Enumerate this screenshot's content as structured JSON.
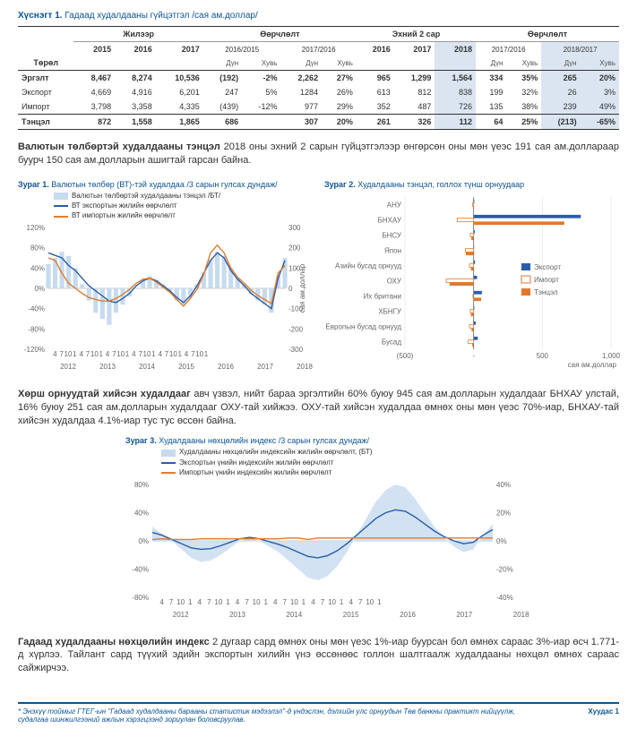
{
  "table": {
    "title_bold": "Хүснэгт 1.",
    "title_rest": " Гадаад худалдааны гүйцэтгэл /сая ам.доллар/",
    "group_headers": [
      "Жилээр",
      "Өөрчлөлт",
      "Эхний 2 сар",
      "Өөрчлөлт"
    ],
    "year_headers": [
      "2015",
      "2016",
      "2017"
    ],
    "change_ranges1": [
      "2016/2015",
      "2017/2016"
    ],
    "month_headers": [
      "2016",
      "2017",
      "2018"
    ],
    "change_ranges2": [
      "2017/2016",
      "2018/2017"
    ],
    "sub": [
      "Дүн",
      "Хувь",
      "Дүн",
      "Хувь",
      "Дүн",
      "Хувь",
      "Дүн",
      "Хувь"
    ],
    "row_label": "Төрөл",
    "rows": [
      {
        "name": "Эргэлт",
        "v": [
          "8,467",
          "8,274",
          "10,536",
          "(192)",
          "-2%",
          "2,262",
          "27%",
          "965",
          "1,299",
          "1,564",
          "334",
          "35%",
          "265",
          "20%"
        ]
      },
      {
        "name": "Экспорт",
        "v": [
          "4,669",
          "4,916",
          "6,201",
          "247",
          "5%",
          "1284",
          "26%",
          "613",
          "812",
          "838",
          "199",
          "32%",
          "26",
          "3%"
        ]
      },
      {
        "name": "Импорт",
        "v": [
          "3,798",
          "3,358",
          "4,335",
          "(439)",
          "-12%",
          "977",
          "29%",
          "352",
          "487",
          "726",
          "135",
          "38%",
          "239",
          "49%"
        ]
      },
      {
        "name": "Тэнцэл",
        "v": [
          "872",
          "1,558",
          "1,865",
          "686",
          "",
          "307",
          "20%",
          "261",
          "326",
          "112",
          "64",
          "25%",
          "(213)",
          "-65%"
        ]
      }
    ]
  },
  "para1_a": "Валютын төлбөртэй худалдааны тэнцэл",
  "para1_b": " 2018 оны эхний 2 сарын гүйцэтгэлээр өнгөрсөн оны мөн үеэс  191 сая ам.доллараар буурч 150 сая ам.долларын ашигтай гарсан байна.",
  "chart1": {
    "title_bold": "Зураг 1.",
    "title_rest": " Валютын төлбөр (ВТ)-тэй худалдаа ",
    "subtitle": "/3 сарын гулсах дундаж/",
    "legend": [
      "Валютын төлбөртэй худалдааны тэнцэл /БТ/",
      "ВТ экспортын жилийн өөрчлөлт",
      "ВТ импортын жилийн өөрчлөлт"
    ],
    "colors": {
      "bar": "#c7dbef",
      "line1": "#2a5caa",
      "line2": "#e07b2e"
    },
    "yLeft": [
      120,
      80,
      40,
      0,
      -40,
      -80,
      -120
    ],
    "yRight": [
      300,
      200,
      100,
      0,
      -100,
      -200,
      -300
    ],
    "yRightLabel": "сая ам.доллар",
    "xYears": [
      "2012",
      "2013",
      "2014",
      "2015",
      "2016",
      "2017",
      "2018"
    ],
    "xMonths": [
      "4",
      "7",
      "10",
      "1"
    ],
    "bars": [
      120,
      150,
      180,
      160,
      100,
      20,
      -60,
      -120,
      -150,
      -180,
      -120,
      -80,
      -40,
      0,
      40,
      60,
      40,
      20,
      -10,
      -60,
      -80,
      -40,
      20,
      80,
      140,
      180,
      160,
      100,
      50,
      20,
      -30,
      -60,
      -80,
      -120,
      60,
      150
    ],
    "series1": [
      70,
      65,
      60,
      45,
      35,
      20,
      5,
      -5,
      -15,
      -25,
      -28,
      -20,
      -10,
      5,
      15,
      20,
      15,
      5,
      -5,
      -18,
      -28,
      -15,
      5,
      30,
      55,
      70,
      60,
      35,
      18,
      5,
      -10,
      -20,
      -30,
      -40,
      20,
      55
    ],
    "series2": [
      60,
      55,
      30,
      10,
      0,
      -10,
      -18,
      -22,
      -25,
      -25,
      -20,
      -12,
      -2,
      10,
      18,
      20,
      12,
      2,
      -8,
      -22,
      -35,
      -20,
      -2,
      28,
      70,
      85,
      70,
      40,
      22,
      10,
      -4,
      -14,
      -22,
      -30,
      30,
      45
    ]
  },
  "chart2": {
    "title_bold": "Зураг 2.",
    "title_rest": " Худалдааны тэнцэл, голлох түнш орнуудаар",
    "legend": [
      "Экспорт",
      "Импорт",
      "Тэнцэл"
    ],
    "colors": {
      "export": "#2a5caa",
      "import": "#e07b2e",
      "balance": "#e07b2e"
    },
    "categories": [
      "АНУ",
      "БНХАУ",
      "БНСУ",
      "Япон",
      "Азийн бусад орнууд",
      "ОХУ",
      "Их британи",
      "ХБНГУ",
      "Европын бусад орнууд",
      "Бусад"
    ],
    "xTicks": [
      "(500)",
      "-",
      "500",
      "1,000"
    ],
    "xLabel": "сая ам.доллар",
    "data": [
      {
        "exp": 5,
        "imp": -8,
        "bal": -3
      },
      {
        "exp": 780,
        "imp": -120,
        "bal": 660
      },
      {
        "exp": 8,
        "imp": -25,
        "bal": -17
      },
      {
        "exp": 3,
        "imp": -60,
        "bal": -57
      },
      {
        "exp": 10,
        "imp": -30,
        "bal": -20
      },
      {
        "exp": 25,
        "imp": -200,
        "bal": -175
      },
      {
        "exp": 60,
        "imp": -5,
        "bal": 55
      },
      {
        "exp": 5,
        "imp": -25,
        "bal": -20
      },
      {
        "exp": 15,
        "imp": -30,
        "bal": -15
      },
      {
        "exp": 30,
        "imp": -40,
        "bal": -10
      }
    ]
  },
  "para2": "Хөрш орнуудтай хийсэн худалдааг",
  "para2_rest": " авч үзвэл, нийт бараа эргэлтийн 60% буюу 945 сая ам.долларын худалдааг БНХАУ улстай, 16% буюу 251 сая ам.долларын худалдааг ОХУ-тай хийжээ. ОХУ-тай хийсэн худалдаа өмнөх оны мөн үеэс 70%-иар, БНХАУ-тай хийсэн худалдаа 4.1%-иар тус тус өссөн байна.",
  "chart3": {
    "title_bold": "Зураг 3.",
    "title_rest": " Худалдааны нөхцөлийн индекс ",
    "subtitle": "/3 сарын гулсах дундаж/",
    "legend": [
      "Худалдааны нөхцөлийн индексийн жилийн өөрчлөлт, (БТ)",
      "Экспортын үнийн индексийн жилийн өөрчлөлт",
      "Импортын үнийн индексийн жилийн өөрчлөлт"
    ],
    "colors": {
      "area": "#c7dbef",
      "line1": "#2a5caa",
      "line2": "#e07b2e"
    },
    "yLeft": [
      80,
      40,
      0,
      -40,
      -80
    ],
    "yRight": [
      40,
      20,
      0,
      -20,
      -40
    ],
    "xYears": [
      "2012",
      "2013",
      "2014",
      "2015",
      "2016",
      "2017",
      "2018"
    ],
    "xMonths": [
      "4",
      "7",
      "10",
      "1"
    ],
    "area": [
      10,
      5,
      0,
      -6,
      -12,
      -15,
      -14,
      -10,
      -5,
      0,
      2,
      0,
      -4,
      -8,
      -14,
      -20,
      -26,
      -28,
      -25,
      -18,
      -8,
      4,
      16,
      28,
      36,
      40,
      38,
      30,
      20,
      10,
      2,
      -4,
      -8,
      -6,
      4,
      12
    ],
    "series1": [
      12,
      8,
      2,
      -4,
      -10,
      -12,
      -11,
      -7,
      -2,
      3,
      5,
      3,
      -1,
      -5,
      -10,
      -16,
      -22,
      -24,
      -21,
      -14,
      -4,
      8,
      20,
      32,
      40,
      44,
      42,
      34,
      24,
      14,
      6,
      0,
      -4,
      -2,
      8,
      16
    ],
    "series2": [
      2,
      3,
      2,
      2,
      2,
      3,
      3,
      3,
      3,
      3,
      3,
      3,
      3,
      3,
      4,
      4,
      2,
      4,
      4,
      4,
      4,
      4,
      4,
      4,
      4,
      4,
      4,
      4,
      4,
      4,
      4,
      4,
      4,
      4,
      4,
      4
    ]
  },
  "para3_a": "Гадаад худалдааны нөхцөлийн индекс",
  "para3_b": " 2  дугаар сард өмнөх оны мөн үеэс 1%-иар буурсан бол өмнөх сараас 3%-иар өсч 1.771-д хүрлээ. Тайлант сард түүхий эдийн экспортын хилийн үнэ өссөнөөс голлон шалтгаалж худалдааны нөхцөл өмнөх сараас сайжирчээ.",
  "footer": {
    "note": "* Энэхүү тоймыг ГТЕГ-ын \"Гадаад худалдааны барааны статистик мэдээлэл\"-д үндэслэн, дэлхийн улс орнуудын Төв банкны практикт нийцүүлж, судалгаа шинжилгээний ажлын хэрэгцээнд зориулан боловсруулав.",
    "page": "Хуудас 1"
  }
}
